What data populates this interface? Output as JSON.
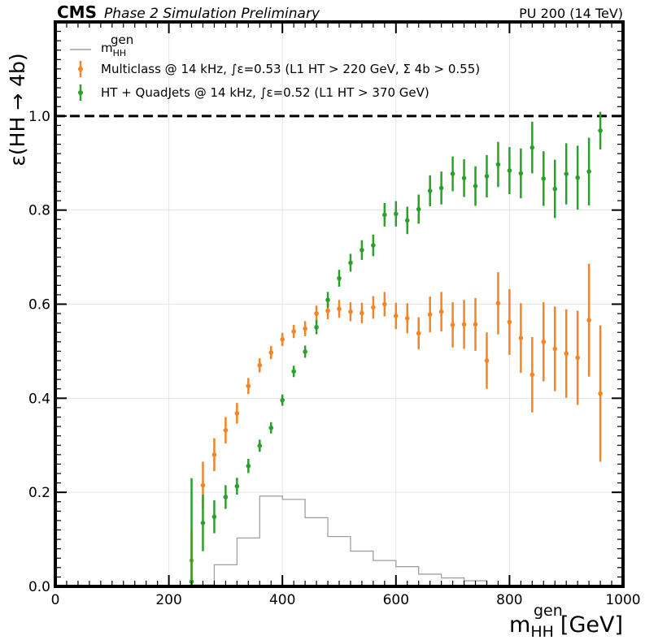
{
  "header": {
    "cms": "CMS",
    "subtitle": "Phase 2 Simulation Preliminary",
    "pileup": "PU 200 (14 TeV)"
  },
  "colors": {
    "orange": "#f28526",
    "green": "#2ca02c",
    "gen_hist": "#a0a0a0"
  },
  "chart_data": {
    "type": "scatter",
    "xlabel_main": "m",
    "xlabel_sup": "gen",
    "xlabel_sub": "HH",
    "xlabel_unit": "[GeV]",
    "ylabel": "ε(HH  → 4b)",
    "xlim": [
      0,
      1000
    ],
    "ylim": [
      0,
      1.2
    ],
    "xticks": [
      "0",
      "200",
      "400",
      "600",
      "800",
      "1000"
    ],
    "yticks": [
      "0.0",
      "0.2",
      "0.4",
      "0.6",
      "0.8",
      "1.0"
    ],
    "grid": true,
    "reference_line_y": 1.0,
    "legend_position": "top-left",
    "x": [
      240,
      260,
      280,
      300,
      320,
      340,
      360,
      380,
      400,
      420,
      440,
      460,
      480,
      500,
      520,
      540,
      560,
      580,
      600,
      620,
      640,
      660,
      680,
      700,
      720,
      740,
      760,
      780,
      800,
      820,
      840,
      860,
      880,
      900,
      920,
      940,
      960
    ],
    "series": [
      {
        "name": "Multiclass @ 14 kHz, ∫ε=0.53 (L1 HT > 220 GeV, Σ 4b > 0.55)",
        "color": "orange",
        "values": [
          0.055,
          0.215,
          0.28,
          0.332,
          0.368,
          0.426,
          0.47,
          0.497,
          0.525,
          0.542,
          0.548,
          0.58,
          0.586,
          0.59,
          0.584,
          0.581,
          0.593,
          0.6,
          0.575,
          0.57,
          0.538,
          0.578,
          0.584,
          0.556,
          0.557,
          0.557,
          0.48,
          0.602,
          0.562,
          0.528,
          0.45,
          0.52,
          0.505,
          0.495,
          0.486,
          0.566,
          0.41
        ],
        "errors": [
          0.065,
          0.05,
          0.035,
          0.028,
          0.022,
          0.017,
          0.015,
          0.014,
          0.014,
          0.014,
          0.016,
          0.017,
          0.018,
          0.019,
          0.02,
          0.022,
          0.024,
          0.026,
          0.028,
          0.032,
          0.034,
          0.038,
          0.042,
          0.048,
          0.052,
          0.056,
          0.06,
          0.066,
          0.07,
          0.074,
          0.08,
          0.084,
          0.09,
          0.094,
          0.1,
          0.12,
          0.145
        ]
      },
      {
        "name": "HT + QuadJets @ 14 kHz, ∫ε=0.52 (L1 HT > 370 GeV)",
        "color": "green",
        "values": [
          0.01,
          0.135,
          0.148,
          0.19,
          0.213,
          0.256,
          0.299,
          0.337,
          0.396,
          0.457,
          0.499,
          0.551,
          0.609,
          0.655,
          0.688,
          0.715,
          0.725,
          0.79,
          0.792,
          0.778,
          0.802,
          0.841,
          0.847,
          0.877,
          0.868,
          0.851,
          0.872,
          0.897,
          0.884,
          0.878,
          0.933,
          0.867,
          0.845,
          0.877,
          0.869,
          0.882,
          0.969
        ],
        "errors": [
          0.22,
          0.06,
          0.035,
          0.025,
          0.018,
          0.015,
          0.013,
          0.012,
          0.012,
          0.012,
          0.013,
          0.015,
          0.017,
          0.018,
          0.019,
          0.021,
          0.023,
          0.025,
          0.027,
          0.029,
          0.031,
          0.033,
          0.035,
          0.037,
          0.04,
          0.042,
          0.045,
          0.048,
          0.05,
          0.053,
          0.055,
          0.058,
          0.062,
          0.065,
          0.068,
          0.072,
          0.04
        ]
      }
    ],
    "gen_histogram": {
      "name_main": "m",
      "name_sup": "gen",
      "name_sub": "HH",
      "bin_edges": [
        240,
        280,
        320,
        360,
        400,
        440,
        480,
        520,
        560,
        600,
        640,
        680,
        720,
        760
      ],
      "values": [
        0.003,
        0.046,
        0.103,
        0.192,
        0.185,
        0.146,
        0.106,
        0.075,
        0.055,
        0.042,
        0.026,
        0.018,
        0.012
      ]
    }
  }
}
